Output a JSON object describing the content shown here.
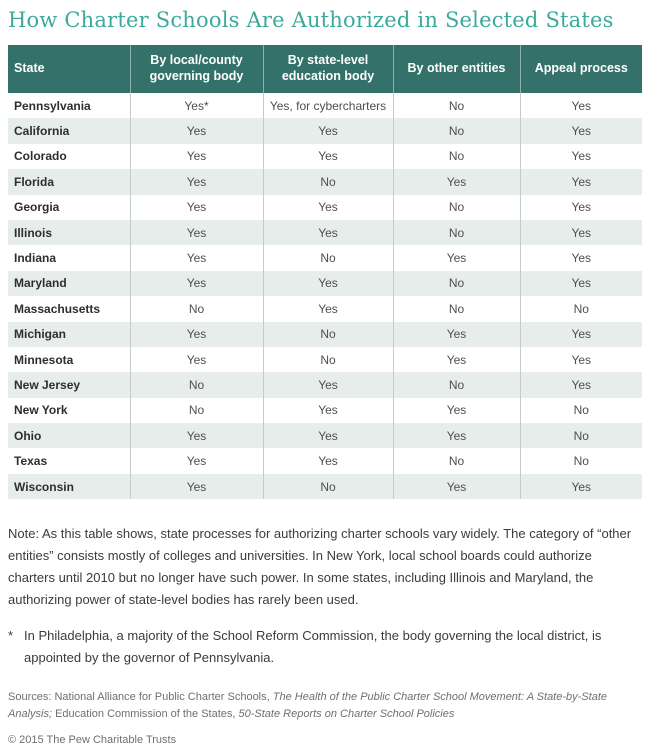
{
  "title": "How Charter Schools Are Authorized in Selected States",
  "chart_data": {
    "type": "table",
    "title": "How Charter Schools Are Authorized in Selected States",
    "columns": [
      "State",
      "By local/county governing body",
      "By state-level education body",
      "By other entities",
      "Appeal process"
    ],
    "rows": [
      {
        "state": "Pennsylvania",
        "values": [
          "Yes*",
          "Yes, for cybercharters",
          "No",
          "Yes"
        ]
      },
      {
        "state": "California",
        "values": [
          "Yes",
          "Yes",
          "No",
          "Yes"
        ]
      },
      {
        "state": "Colorado",
        "values": [
          "Yes",
          "Yes",
          "No",
          "Yes"
        ]
      },
      {
        "state": "Florida",
        "values": [
          "Yes",
          "No",
          "Yes",
          "Yes"
        ]
      },
      {
        "state": "Georgia",
        "values": [
          "Yes",
          "Yes",
          "No",
          "Yes"
        ]
      },
      {
        "state": "Illinois",
        "values": [
          "Yes",
          "Yes",
          "No",
          "Yes"
        ]
      },
      {
        "state": "Indiana",
        "values": [
          "Yes",
          "No",
          "Yes",
          "Yes"
        ]
      },
      {
        "state": "Maryland",
        "values": [
          "Yes",
          "Yes",
          "No",
          "Yes"
        ]
      },
      {
        "state": "Massachusetts",
        "values": [
          "No",
          "Yes",
          "No",
          "No"
        ]
      },
      {
        "state": "Michigan",
        "values": [
          "Yes",
          "No",
          "Yes",
          "Yes"
        ]
      },
      {
        "state": "Minnesota",
        "values": [
          "Yes",
          "No",
          "Yes",
          "Yes"
        ]
      },
      {
        "state": "New Jersey",
        "values": [
          "No",
          "Yes",
          "No",
          "Yes"
        ]
      },
      {
        "state": "New York",
        "values": [
          "No",
          "Yes",
          "Yes",
          "No"
        ]
      },
      {
        "state": "Ohio",
        "values": [
          "Yes",
          "Yes",
          "Yes",
          "No"
        ]
      },
      {
        "state": "Texas",
        "values": [
          "Yes",
          "Yes",
          "No",
          "No"
        ]
      },
      {
        "state": "Wisconsin",
        "values": [
          "Yes",
          "No",
          "Yes",
          "Yes"
        ]
      }
    ],
    "layout": {
      "striped_rows": true,
      "header_position": "top",
      "grid": "vertical-only"
    }
  },
  "note": "Note: As this table shows, state processes for authorizing charter schools vary widely. The category of “other entities” consists mostly of colleges and universities. In New York, local school boards could authorize charters until 2010 but no longer have such power. In some states, including Illinois and Maryland, the authorizing power of state-level bodies has rarely been used.",
  "footnote": {
    "marker": "*",
    "text": "In Philadelphia, a majority of the School Reform Commission, the body governing the local district, is appointed by the governor of Pennsylvania."
  },
  "sources": {
    "s1": "Sources: National Alliance for Public Charter Schools, ",
    "s2": "The Health of the Public Charter School Movement: A State-by-State Analysis;",
    "s3": " Education Commission of the States, ",
    "s4": "50-State Reports on Charter School Policies"
  },
  "copyright": "© 2015 The Pew Charitable Trusts",
  "colors": {
    "title_text": "#3ba99b",
    "header_bg": "#34716a",
    "header_text": "#ffffff",
    "row_stripe": "#e6edeb",
    "column_divider": "#c2ccc9",
    "state_text": "#2e2e2e",
    "value_text": "#4f4f4f",
    "note_text": "#3b3b3b",
    "sources_text": "#6f6f6f"
  }
}
